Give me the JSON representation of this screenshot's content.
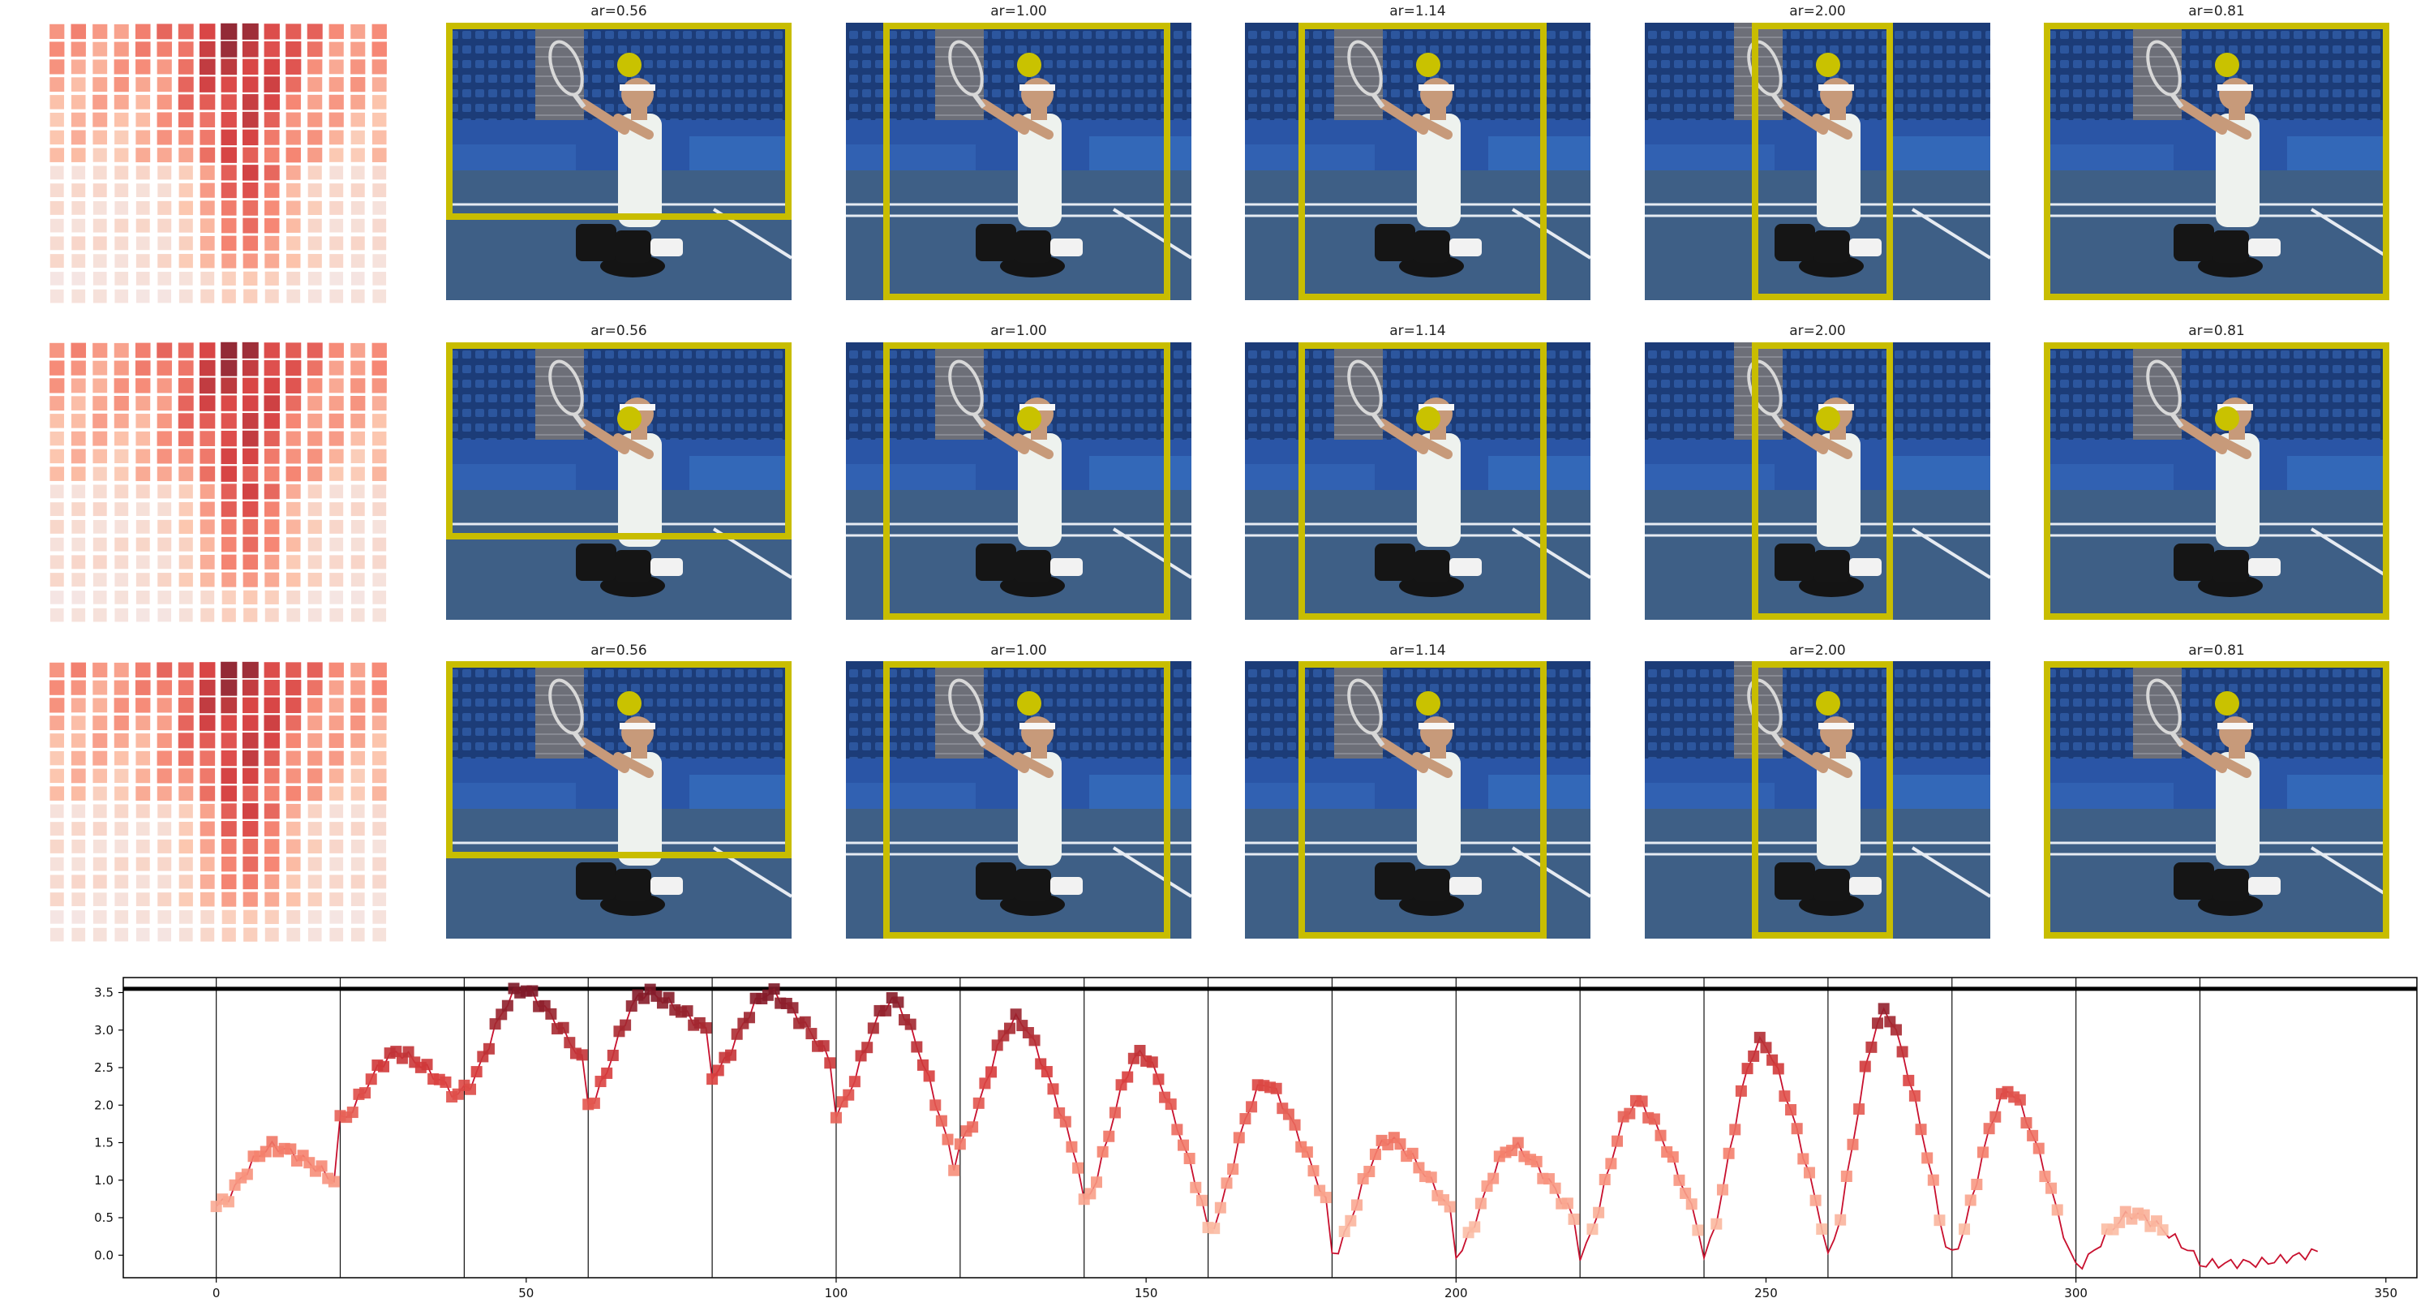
{
  "colors": {
    "box": "#c8bd00",
    "dot": "#c9c200",
    "line": "#c8102e",
    "court": "#3e5f86",
    "stands": "#1c3c78",
    "wall": "#2a55a6"
  },
  "grid": {
    "rows": [
      {
        "titles": [
          "ar=0.56",
          "ar=1.00",
          "ar=1.14",
          "ar=2.00",
          "ar=0.81"
        ],
        "dot_level": "high"
      },
      {
        "titles": [
          "ar=0.56",
          "ar=1.00",
          "ar=1.14",
          "ar=2.00",
          "ar=0.81"
        ],
        "dot_level": "mid"
      },
      {
        "titles": [
          "ar=0.56",
          "ar=1.00",
          "ar=1.14",
          "ar=2.00",
          "ar=0.81"
        ],
        "dot_level": "high"
      }
    ]
  },
  "chart_data": {
    "type": "line",
    "xlim": [
      -15,
      355
    ],
    "ylim": [
      -0.3,
      3.7
    ],
    "xticks": [
      0,
      50,
      100,
      150,
      200,
      250,
      300,
      350
    ],
    "yticks": [
      "0.0",
      "0.5",
      "1.0",
      "1.5",
      "2.0",
      "2.5",
      "3.0",
      "3.5"
    ],
    "vlines": [
      0,
      20,
      40,
      60,
      80,
      100,
      120,
      140,
      160,
      180,
      200,
      220,
      240,
      260,
      280,
      300,
      320
    ],
    "hline": 3.55,
    "segments": [
      {
        "peak": 1.45,
        "base": 0.65,
        "end": 1.0
      },
      {
        "peak": 2.7,
        "base": 1.8,
        "end": 2.1
      },
      {
        "peak": 3.55,
        "base": 2.2,
        "end": 2.6
      },
      {
        "peak": 3.5,
        "base": 2.0,
        "end": 3.0
      },
      {
        "peak": 3.5,
        "base": 2.4,
        "end": 2.6
      },
      {
        "peak": 3.4,
        "base": 1.9,
        "end": 1.2
      },
      {
        "peak": 3.15,
        "base": 1.5,
        "end": 1.2
      },
      {
        "peak": 2.7,
        "base": 0.7,
        "end": 0.7
      },
      {
        "peak": 2.3,
        "base": 0.3,
        "end": 0.7
      },
      {
        "peak": 1.55,
        "base": 0.0,
        "end": 0.6
      },
      {
        "peak": 1.45,
        "base": 0.0,
        "end": 0.5
      },
      {
        "peak": 2.05,
        "base": 0.0,
        "end": 0.4
      },
      {
        "peak": 2.85,
        "base": 0.0,
        "end": 0.4
      },
      {
        "peak": 3.25,
        "base": 0.0,
        "end": 0.1
      },
      {
        "peak": 2.2,
        "base": 0.0,
        "end": 0.0
      },
      {
        "peak": 0.55,
        "base": -0.15,
        "end": 0.0
      },
      {
        "peak": -0.1,
        "base": -0.12,
        "end": 0.05
      }
    ]
  }
}
